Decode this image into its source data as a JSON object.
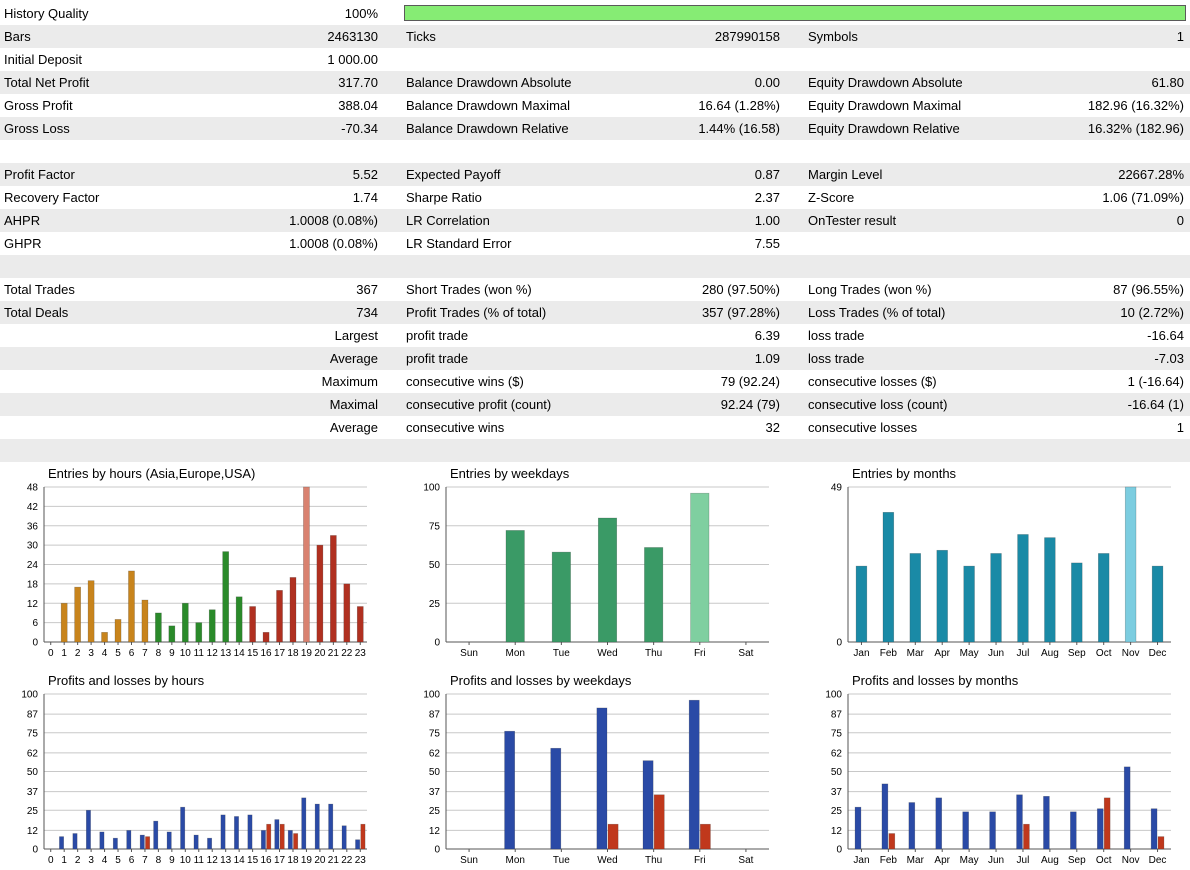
{
  "colors": {
    "history_bar": "#86ec74",
    "shade": "#ebebeb"
  },
  "summary_rows": [
    {
      "c1": [
        "History Quality",
        "100%"
      ],
      "c2": null,
      "c3": null,
      "shade": false,
      "bar": true
    },
    {
      "c1": [
        "Bars",
        "2463130"
      ],
      "c2": [
        "Ticks",
        "287990158"
      ],
      "c3": [
        "Symbols",
        "1"
      ],
      "shade": true
    },
    {
      "c1": [
        "Initial Deposit",
        "1 000.00"
      ],
      "c2": null,
      "c3": null,
      "shade": false
    },
    {
      "c1": [
        "Total Net Profit",
        "317.70"
      ],
      "c2": [
        "Balance Drawdown Absolute",
        "0.00"
      ],
      "c3": [
        "Equity Drawdown Absolute",
        "61.80"
      ],
      "shade": true
    },
    {
      "c1": [
        "Gross Profit",
        "388.04"
      ],
      "c2": [
        "Balance Drawdown Maximal",
        "16.64 (1.28%)"
      ],
      "c3": [
        "Equity Drawdown Maximal",
        "182.96 (16.32%)"
      ],
      "shade": false
    },
    {
      "c1": [
        "Gross Loss",
        "-70.34"
      ],
      "c2": [
        "Balance Drawdown Relative",
        "1.44% (16.58)"
      ],
      "c3": [
        "Equity Drawdown Relative",
        "16.32% (182.96)"
      ],
      "shade": true
    },
    {
      "c1": null,
      "c2": null,
      "c3": null,
      "shade": false
    },
    {
      "c1": [
        "Profit Factor",
        "5.52"
      ],
      "c2": [
        "Expected Payoff",
        "0.87"
      ],
      "c3": [
        "Margin Level",
        "22667.28%"
      ],
      "shade": true
    },
    {
      "c1": [
        "Recovery Factor",
        "1.74"
      ],
      "c2": [
        "Sharpe Ratio",
        "2.37"
      ],
      "c3": [
        "Z-Score",
        "1.06 (71.09%)"
      ],
      "shade": false
    },
    {
      "c1": [
        "AHPR",
        "1.0008 (0.08%)"
      ],
      "c2": [
        "LR Correlation",
        "1.00"
      ],
      "c3": [
        "OnTester result",
        "0"
      ],
      "shade": true
    },
    {
      "c1": [
        "GHPR",
        "1.0008 (0.08%)"
      ],
      "c2": [
        "LR Standard Error",
        "7.55"
      ],
      "c3": null,
      "shade": false
    },
    {
      "c1": null,
      "c2": null,
      "c3": null,
      "shade": true
    },
    {
      "c1": [
        "Total Trades",
        "367"
      ],
      "c2": [
        "Short Trades (won %)",
        "280 (97.50%)"
      ],
      "c3": [
        "Long Trades (won %)",
        "87 (96.55%)"
      ],
      "shade": false
    },
    {
      "c1": [
        "Total Deals",
        "734"
      ],
      "c2": [
        "Profit Trades (% of total)",
        "357 (97.28%)"
      ],
      "c3": [
        "Loss Trades (% of total)",
        "10 (2.72%)"
      ],
      "shade": true
    },
    {
      "c1": [
        "",
        "Largest"
      ],
      "c2": [
        "profit trade",
        "6.39"
      ],
      "c3": [
        "loss trade",
        "-16.64"
      ],
      "shade": false
    },
    {
      "c1": [
        "",
        "Average"
      ],
      "c2": [
        "profit trade",
        "1.09"
      ],
      "c3": [
        "loss trade",
        "-7.03"
      ],
      "shade": true
    },
    {
      "c1": [
        "",
        "Maximum"
      ],
      "c2": [
        "consecutive wins ($)",
        "79 (92.24)"
      ],
      "c3": [
        "consecutive losses ($)",
        "1 (-16.64)"
      ],
      "shade": false
    },
    {
      "c1": [
        "",
        "Maximal"
      ],
      "c2": [
        "consecutive profit (count)",
        "92.24 (79)"
      ],
      "c3": [
        "consecutive loss (count)",
        "-16.64 (1)"
      ],
      "shade": true
    },
    {
      "c1": [
        "",
        "Average"
      ],
      "c2": [
        "consecutive wins",
        "32"
      ],
      "c3": [
        "consecutive losses",
        "1"
      ],
      "shade": false
    },
    {
      "c1": null,
      "c2": null,
      "c3": null,
      "shade": true
    }
  ],
  "chart_data": [
    {
      "id": "entries-hours",
      "type": "bar",
      "title": "Entries by hours (Asia,Europe,USA)",
      "categories": [
        "0",
        "1",
        "2",
        "3",
        "4",
        "5",
        "6",
        "7",
        "8",
        "9",
        "10",
        "11",
        "12",
        "13",
        "14",
        "15",
        "16",
        "17",
        "18",
        "19",
        "20",
        "21",
        "22",
        "23"
      ],
      "ylim": [
        0,
        48
      ],
      "yticks": [
        "0",
        "6",
        "12",
        "18",
        "24",
        "30",
        "36",
        "42",
        "48"
      ],
      "series": [
        {
          "values": [
            0,
            12,
            17,
            19,
            3,
            7,
            22,
            13,
            9,
            5,
            12,
            6,
            10,
            28,
            14,
            11,
            3,
            16,
            20,
            48,
            30,
            33,
            18,
            11
          ]
        }
      ],
      "bar_colors": [
        "#c8841c",
        "#c8841c",
        "#c8841c",
        "#c8841c",
        "#c8841c",
        "#c8841c",
        "#c8841c",
        "#c8841c",
        "#2a8a2a",
        "#2a8a2a",
        "#2a8a2a",
        "#2a8a2a",
        "#2a8a2a",
        "#2a8a2a",
        "#2a8a2a",
        "#b03020",
        "#b03020",
        "#b03020",
        "#b03020",
        "#d98270",
        "#b03020",
        "#b03020",
        "#b03020",
        "#b03020"
      ]
    },
    {
      "id": "entries-weekdays",
      "type": "bar",
      "title": "Entries by weekdays",
      "categories": [
        "Sun",
        "Mon",
        "Tue",
        "Wed",
        "Thu",
        "Fri",
        "Sat"
      ],
      "ylim": [
        0,
        100
      ],
      "yticks": [
        "0",
        "25",
        "50",
        "75",
        "100"
      ],
      "series": [
        {
          "values": [
            0,
            72,
            58,
            80,
            61,
            96,
            0
          ]
        }
      ],
      "bar_colors": [
        "#3a9a66",
        "#3a9a66",
        "#3a9a66",
        "#3a9a66",
        "#3a9a66",
        "#7fcfa0",
        "#3a9a66"
      ]
    },
    {
      "id": "entries-months",
      "type": "bar",
      "title": "Entries by months",
      "categories": [
        "Jan",
        "Feb",
        "Mar",
        "Apr",
        "May",
        "Jun",
        "Jul",
        "Aug",
        "Sep",
        "Oct",
        "Nov",
        "Dec"
      ],
      "ylim": [
        0,
        49
      ],
      "yticks": [
        "0",
        "49"
      ],
      "series": [
        {
          "values": [
            24,
            41,
            28,
            29,
            24,
            28,
            34,
            33,
            25,
            28,
            49,
            24
          ]
        }
      ],
      "bar_colors": [
        "#1a8aa6",
        "#1a8aa6",
        "#1a8aa6",
        "#1a8aa6",
        "#1a8aa6",
        "#1a8aa6",
        "#1a8aa6",
        "#1a8aa6",
        "#1a8aa6",
        "#1a8aa6",
        "#7ccde0",
        "#1a8aa6"
      ]
    },
    {
      "id": "pl-hours",
      "type": "bar",
      "title": "Profits and losses by hours",
      "categories": [
        "0",
        "1",
        "2",
        "3",
        "4",
        "5",
        "6",
        "7",
        "8",
        "9",
        "10",
        "11",
        "12",
        "13",
        "14",
        "15",
        "16",
        "17",
        "18",
        "19",
        "20",
        "21",
        "22",
        "23"
      ],
      "ylim": [
        0,
        100
      ],
      "yticks": [
        "0",
        "12",
        "25",
        "37",
        "50",
        "62",
        "75",
        "87",
        "100"
      ],
      "series": [
        {
          "name": "",
          "values": [
            0,
            8,
            10,
            25,
            11,
            7,
            12,
            9,
            18,
            11,
            27,
            9,
            7,
            22,
            21,
            22,
            12,
            19,
            12,
            33,
            29,
            29,
            15,
            6
          ]
        },
        {
          "name": "",
          "values": [
            0,
            0,
            0,
            0,
            0,
            0,
            0,
            8,
            0,
            0,
            0,
            0,
            0,
            0,
            0,
            0,
            16,
            16,
            10,
            0,
            0,
            0,
            0,
            16
          ]
        }
      ],
      "series_colors": [
        "#2a4aa6",
        "#c0381c"
      ]
    },
    {
      "id": "pl-weekdays",
      "type": "bar",
      "title": "Profits and losses by weekdays",
      "categories": [
        "Sun",
        "Mon",
        "Tue",
        "Wed",
        "Thu",
        "Fri",
        "Sat"
      ],
      "ylim": [
        0,
        100
      ],
      "yticks": [
        "0",
        "12",
        "25",
        "37",
        "50",
        "62",
        "75",
        "87",
        "100"
      ],
      "series": [
        {
          "name": "",
          "values": [
            0,
            76,
            65,
            91,
            57,
            96,
            0
          ]
        },
        {
          "name": "",
          "values": [
            0,
            0,
            0,
            16,
            35,
            16,
            0
          ]
        }
      ],
      "series_colors": [
        "#2a4aa6",
        "#c0381c"
      ]
    },
    {
      "id": "pl-months",
      "type": "bar",
      "title": "Profits and losses by months",
      "categories": [
        "Jan",
        "Feb",
        "Mar",
        "Apr",
        "May",
        "Jun",
        "Jul",
        "Aug",
        "Sep",
        "Oct",
        "Nov",
        "Dec"
      ],
      "ylim": [
        0,
        100
      ],
      "yticks": [
        "0",
        "12",
        "25",
        "37",
        "50",
        "62",
        "75",
        "87",
        "100"
      ],
      "series": [
        {
          "name": "",
          "values": [
            27,
            42,
            30,
            33,
            24,
            24,
            35,
            34,
            24,
            26,
            53,
            26
          ]
        },
        {
          "name": "",
          "values": [
            0,
            10,
            0,
            0,
            0,
            0,
            16,
            0,
            0,
            33,
            0,
            8
          ]
        }
      ],
      "series_colors": [
        "#2a4aa6",
        "#c0381c"
      ]
    }
  ]
}
